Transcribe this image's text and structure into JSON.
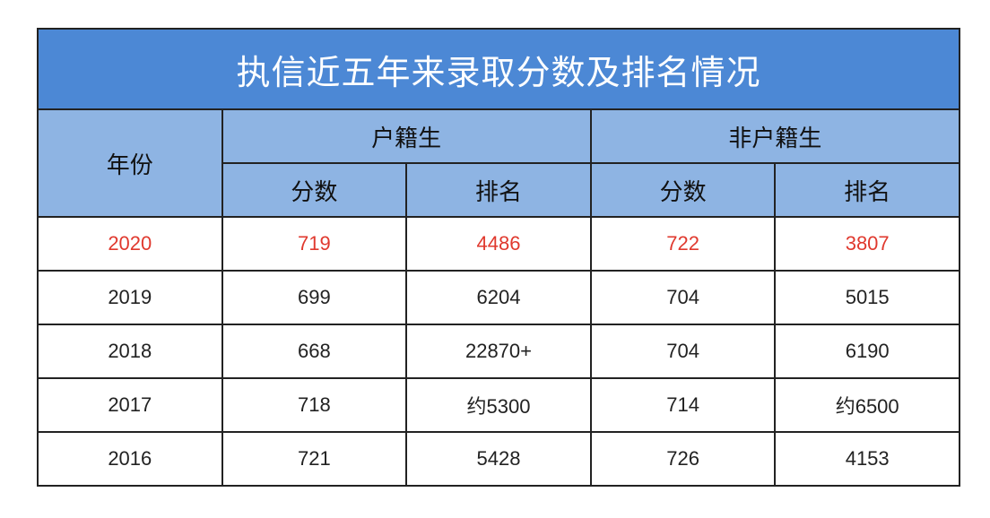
{
  "title": "执信近五年来录取分数及排名情况",
  "headers": {
    "year": "年份",
    "local": "户籍生",
    "nonlocal": "非户籍生",
    "score": "分数",
    "rank": "排名"
  },
  "highlight_color": "#e0392e",
  "rows": [
    {
      "year": "2020",
      "local_score": "719",
      "local_rank": "4486",
      "nonlocal_score": "722",
      "nonlocal_rank": "3807",
      "highlight": true
    },
    {
      "year": "2019",
      "local_score": "699",
      "local_rank": "6204",
      "nonlocal_score": "704",
      "nonlocal_rank": "5015"
    },
    {
      "year": "2018",
      "local_score": "668",
      "local_rank": "22870+",
      "nonlocal_score": "704",
      "nonlocal_rank": "6190"
    },
    {
      "year": "2017",
      "local_score": "718",
      "local_rank": "约5300",
      "nonlocal_score": "714",
      "nonlocal_rank": "约6500"
    },
    {
      "year": "2016",
      "local_score": "721",
      "local_rank": "5428",
      "nonlocal_score": "726",
      "nonlocal_rank": "4153"
    }
  ]
}
